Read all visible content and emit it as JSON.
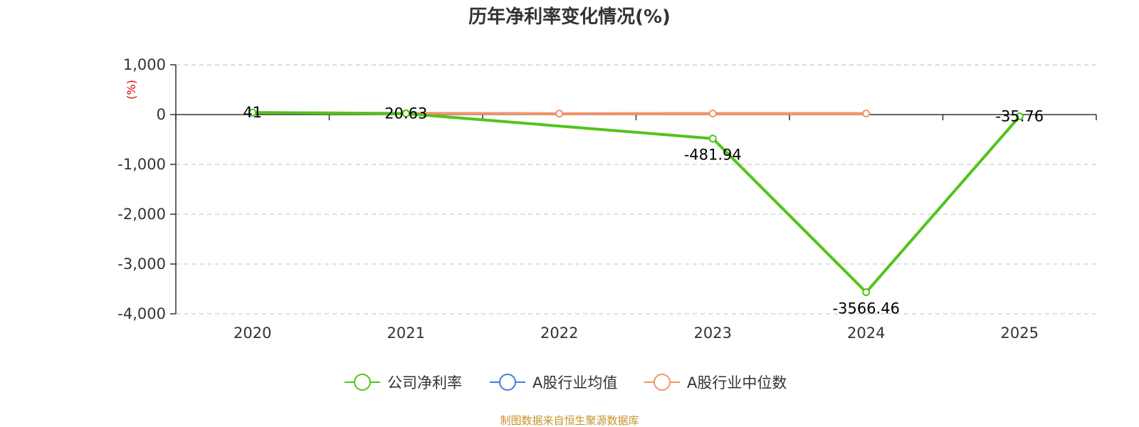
{
  "chart_data": {
    "type": "line",
    "title": "历年净利率变化情况(%)",
    "ylabel": "(%)",
    "xlabel": "",
    "categories": [
      "2020",
      "2021",
      "2022",
      "2023",
      "2024",
      "2025"
    ],
    "ylim": [
      -4000,
      1000
    ],
    "yticks": [
      1000,
      0,
      -1000,
      -2000,
      -3000,
      -4000
    ],
    "ytick_labels": [
      "1,000",
      "0",
      "-1,000",
      "-2,000",
      "-3,000",
      "-4,000"
    ],
    "grid": true,
    "legend_position": "bottom",
    "series": [
      {
        "name": "公司净利率",
        "color": "#52c41a",
        "values": [
          41,
          20.63,
          null,
          -481.94,
          -3566.46,
          -35.76
        ],
        "labels": [
          "41",
          "20.63",
          "",
          "-481.94",
          "-3566.46",
          "-35.76"
        ]
      },
      {
        "name": "A股行业均值",
        "color": "#4a7bd4",
        "values": [
          null,
          null,
          null,
          null,
          null,
          null
        ],
        "labels": [
          "",
          "",
          "",
          "",
          "",
          ""
        ]
      },
      {
        "name": "A股行业中位数",
        "color": "#f2956b",
        "values": [
          38,
          26,
          19,
          21,
          22,
          null
        ],
        "labels": [
          "",
          "",
          "",
          "",
          "",
          ""
        ]
      }
    ],
    "source": "制图数据来自恒生聚源数据库"
  }
}
